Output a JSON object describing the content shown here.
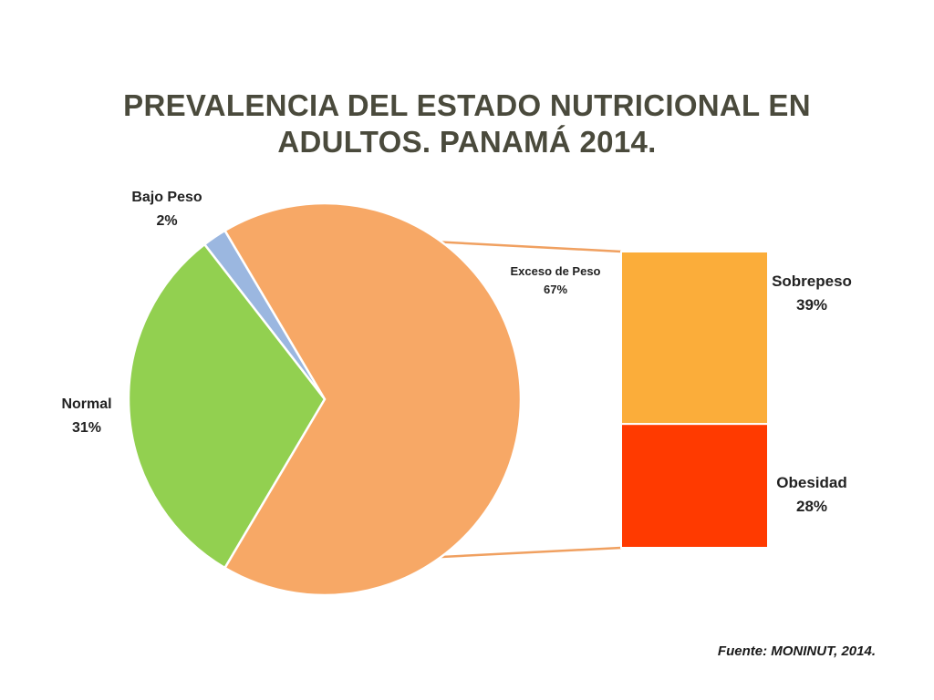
{
  "title_line1": "PREVALENCIA DEL ESTADO NUTRICIONAL EN",
  "title_line2": "ADULTOS. PANAMÁ 2014.",
  "source": "Fuente: MONINUT, 2014.",
  "chart_data": {
    "type": "pie",
    "subtype": "bar-of-pie",
    "slices": [
      {
        "name": "Bajo Peso",
        "value": 2,
        "label": "2%",
        "color": "#9bb7e0"
      },
      {
        "name": "Normal",
        "value": 31,
        "label": "31%",
        "color": "#92d050"
      },
      {
        "name": "Exceso de Peso",
        "value": 67,
        "label": "67%",
        "color": "#f7a866"
      }
    ],
    "breakdown_of": "Exceso de Peso",
    "breakdown": [
      {
        "name": "Sobrepeso",
        "value": 39,
        "label": "39%",
        "color": "#fbad3a"
      },
      {
        "name": "Obesidad",
        "value": 28,
        "label": "28%",
        "color": "#ff3a00"
      }
    ],
    "connector_color": "#f0a060"
  }
}
